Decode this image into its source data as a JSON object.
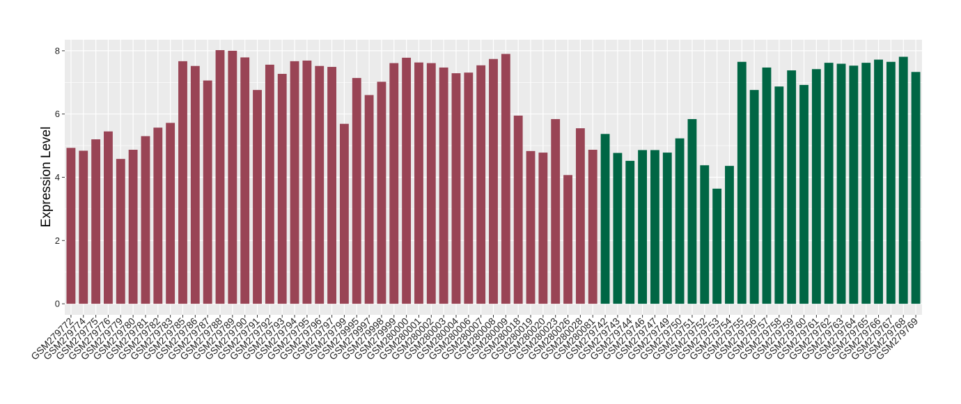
{
  "chart_data": {
    "type": "bar",
    "title": "",
    "xlabel": "",
    "ylabel": "Expression Level",
    "ylim": [
      -0.35,
      8.35
    ],
    "yticks": [
      0,
      2,
      4,
      6,
      8
    ],
    "grid": true,
    "categories": [
      "GSM279772",
      "GSM279774",
      "GSM279775",
      "GSM279776",
      "GSM279779",
      "GSM279780",
      "GSM279781",
      "GSM279782",
      "GSM279783",
      "GSM279785",
      "GSM279786",
      "GSM279787",
      "GSM279788",
      "GSM279789",
      "GSM279790",
      "GSM279791",
      "GSM279792",
      "GSM279793",
      "GSM279794",
      "GSM279795",
      "GSM279796",
      "GSM279797",
      "GSM279799",
      "GSM279995",
      "GSM279997",
      "GSM279998",
      "GSM279999",
      "GSM280000",
      "GSM280001",
      "GSM280002",
      "GSM280003",
      "GSM280004",
      "GSM280006",
      "GSM280007",
      "GSM280008",
      "GSM280009",
      "GSM280018",
      "GSM280019",
      "GSM280020",
      "GSM280023",
      "GSM280026",
      "GSM280028",
      "GSM280081",
      "GSM279742",
      "GSM279743",
      "GSM279744",
      "GSM279746",
      "GSM279747",
      "GSM279749",
      "GSM279750",
      "GSM279751",
      "GSM279752",
      "GSM279753",
      "GSM279754",
      "GSM279755",
      "GSM279756",
      "GSM279757",
      "GSM279758",
      "GSM279759",
      "GSM279760",
      "GSM279761",
      "GSM279762",
      "GSM279763",
      "GSM279764",
      "GSM279765",
      "GSM279766",
      "GSM279767",
      "GSM279768",
      "GSM279769"
    ],
    "values": [
      4.93,
      4.84,
      5.2,
      5.45,
      4.58,
      4.87,
      5.3,
      5.57,
      5.72,
      7.67,
      7.52,
      7.06,
      8.02,
      8.0,
      7.79,
      6.76,
      7.56,
      7.27,
      7.67,
      7.69,
      7.52,
      7.49,
      5.69,
      7.14,
      6.6,
      7.02,
      7.61,
      7.78,
      7.63,
      7.61,
      7.47,
      7.29,
      7.31,
      7.54,
      7.74,
      7.9,
      5.95,
      4.83,
      4.78,
      5.84,
      4.07,
      5.55,
      4.87,
      5.37,
      4.77,
      4.52,
      4.86,
      4.86,
      4.78,
      5.23,
      5.84,
      4.38,
      3.64,
      4.36,
      7.65,
      6.76,
      7.47,
      6.87,
      7.38,
      6.92,
      7.42,
      7.62,
      7.59,
      7.53,
      7.62,
      7.72,
      7.65,
      7.81,
      7.33
    ],
    "group_sizes": [
      43,
      26
    ],
    "colors": [
      "#994455",
      "#006644"
    ],
    "panel_background": "#ebebeb",
    "gridline_color": "#ffffff"
  }
}
